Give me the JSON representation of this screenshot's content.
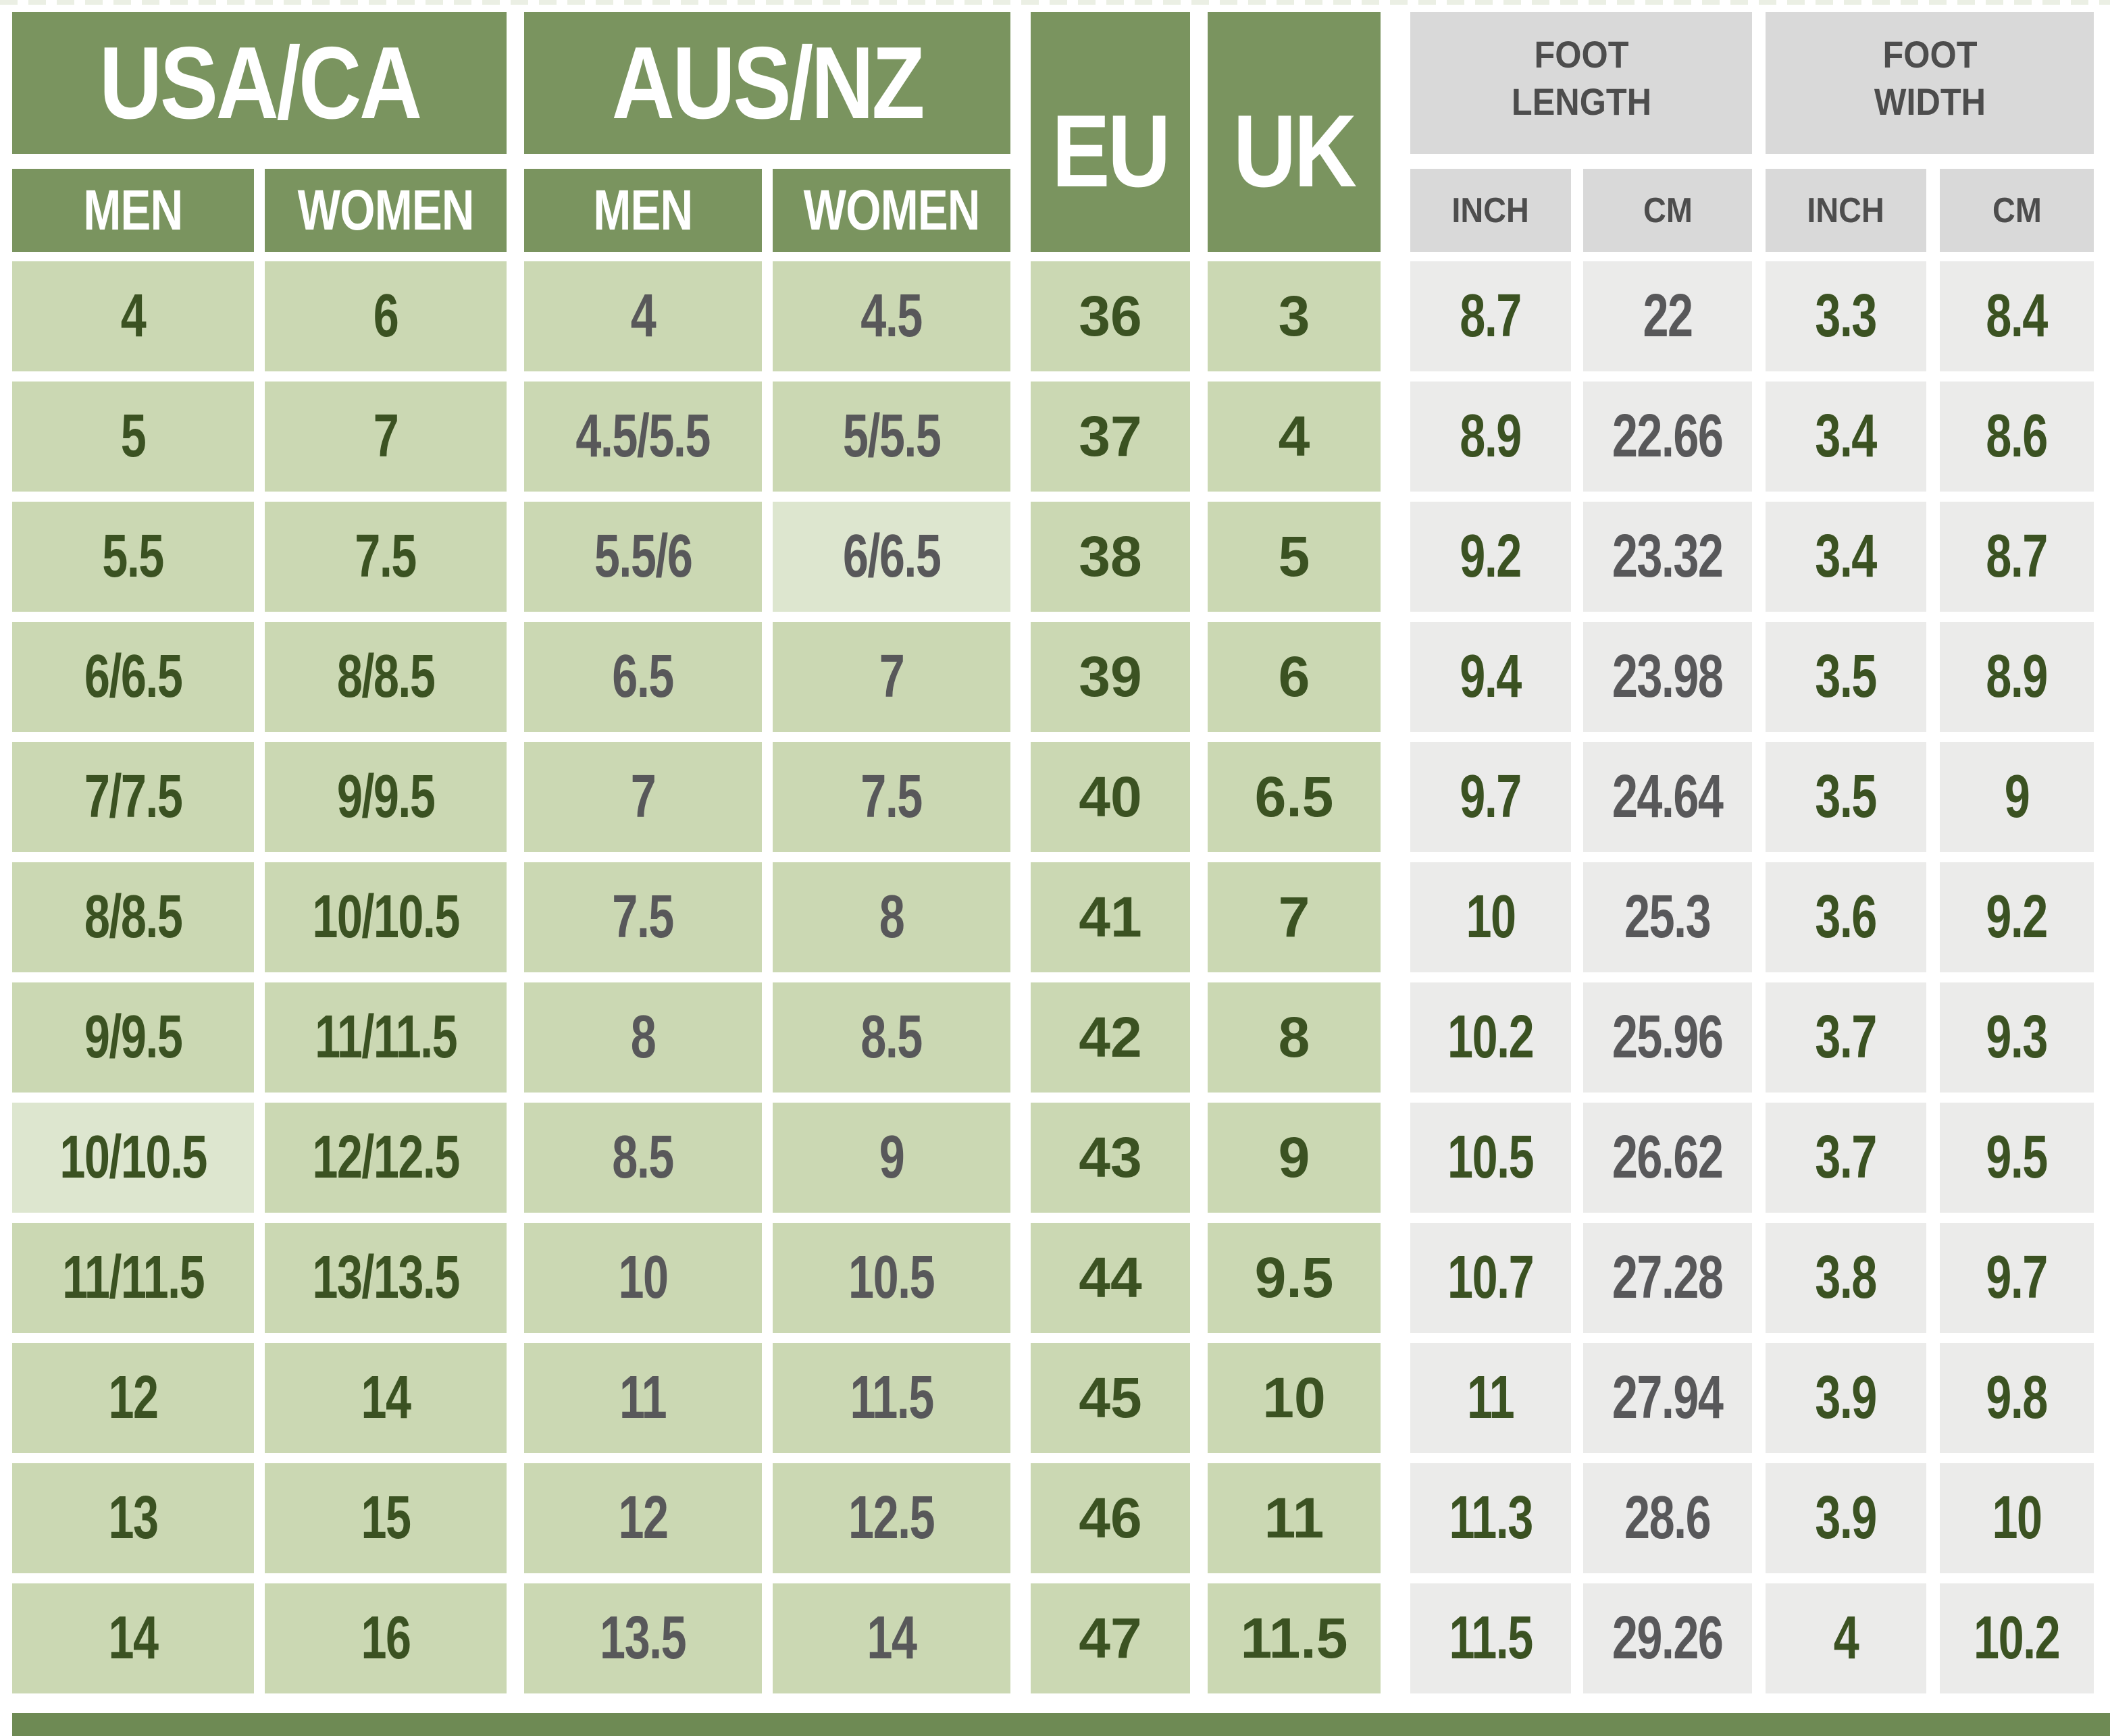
{
  "header": {
    "usa_ca": "USA/CA",
    "aus_nz": "AUS/NZ",
    "eu": "EU",
    "uk": "UK",
    "men": "MEN",
    "women": "WOMEN",
    "foot_length": "FOOT LENGTH",
    "foot_width": "FOOT WIDTH",
    "inch": "INCH",
    "cm": "CM"
  },
  "colors": {
    "header_green": "#7a945f",
    "cell_green": "#cbd8b3",
    "cell_green_light": "#dde6cf",
    "cell_gray": "#ebebea",
    "header_gray": "#d9d9d9",
    "text_green": "#3b5222",
    "text_gray": "#58585a",
    "bottom_bar": "#6e8a54"
  },
  "chart_data": {
    "type": "table",
    "columns": [
      "USA/CA MEN",
      "USA/CA WOMEN",
      "AUS/NZ MEN",
      "AUS/NZ WOMEN",
      "EU",
      "UK",
      "FOOT LENGTH INCH",
      "FOOT LENGTH CM",
      "FOOT WIDTH INCH",
      "FOOT WIDTH CM"
    ],
    "rows": [
      [
        "4",
        "6",
        "4",
        "4.5",
        "36",
        "3",
        "8.7",
        "22",
        "3.3",
        "8.4"
      ],
      [
        "5",
        "7",
        "4.5/5.5",
        "5/5.5",
        "37",
        "4",
        "8.9",
        "22.66",
        "3.4",
        "8.6"
      ],
      [
        "5.5",
        "7.5",
        "5.5/6",
        "6/6.5",
        "38",
        "5",
        "9.2",
        "23.32",
        "3.4",
        "8.7"
      ],
      [
        "6/6.5",
        "8/8.5",
        "6.5",
        "7",
        "39",
        "6",
        "9.4",
        "23.98",
        "3.5",
        "8.9"
      ],
      [
        "7/7.5",
        "9/9.5",
        "7",
        "7.5",
        "40",
        "6.5",
        "9.7",
        "24.64",
        "3.5",
        "9"
      ],
      [
        "8/8.5",
        "10/10.5",
        "7.5",
        "8",
        "41",
        "7",
        "10",
        "25.3",
        "3.6",
        "9.2"
      ],
      [
        "9/9.5",
        "11/11.5",
        "8",
        "8.5",
        "42",
        "8",
        "10.2",
        "25.96",
        "3.7",
        "9.3"
      ],
      [
        "10/10.5",
        "12/12.5",
        "8.5",
        "9",
        "43",
        "9",
        "10.5",
        "26.62",
        "3.7",
        "9.5"
      ],
      [
        "11/11.5",
        "13/13.5",
        "10",
        "10.5",
        "44",
        "9.5",
        "10.7",
        "27.28",
        "3.8",
        "9.7"
      ],
      [
        "12",
        "14",
        "11",
        "11.5",
        "45",
        "10",
        "11",
        "27.94",
        "3.9",
        "9.8"
      ],
      [
        "13",
        "15",
        "12",
        "12.5",
        "46",
        "11",
        "11.3",
        "28.6",
        "3.9",
        "10"
      ],
      [
        "14",
        "16",
        "13.5",
        "14",
        "47",
        "11.5",
        "11.5",
        "29.26",
        "4",
        "10.2"
      ]
    ],
    "highlight_cells": [
      [
        2,
        3
      ],
      [
        7,
        0
      ]
    ]
  }
}
